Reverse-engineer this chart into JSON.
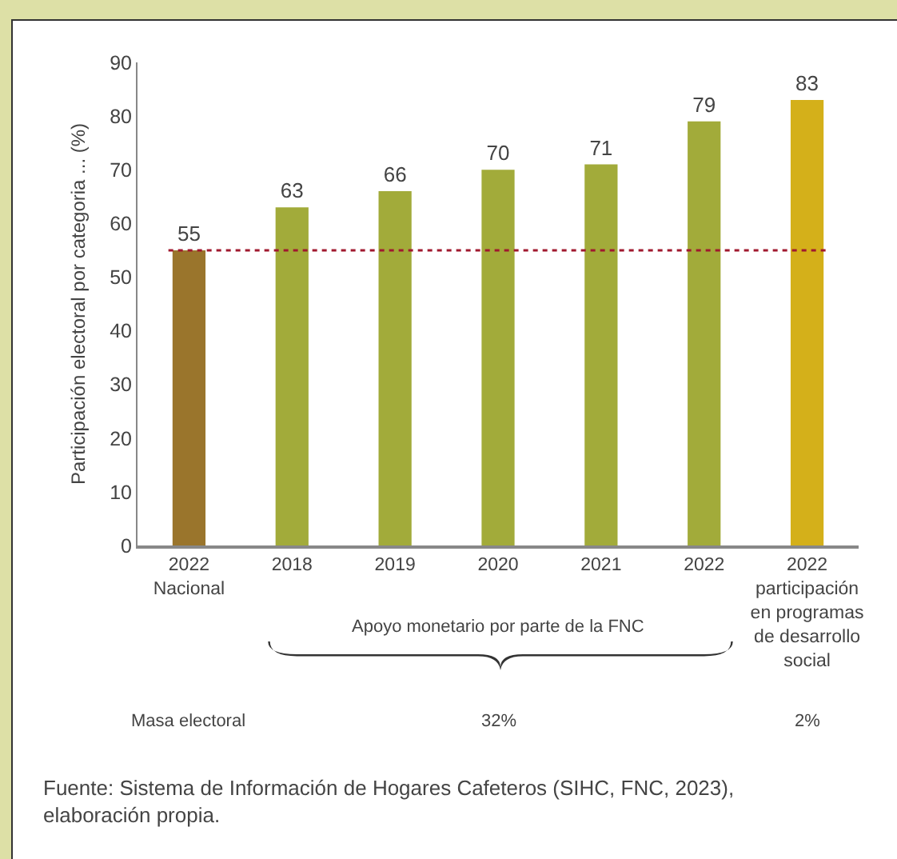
{
  "chart_data": {
    "type": "bar",
    "ylabel": "Participación electoral por categoria ... (%)",
    "categories": [
      "2022\nNacional",
      "2018",
      "2019",
      "2020",
      "2021",
      "2022",
      "2022\nparticipación\nen programas\nde desarrollo\nsocial"
    ],
    "values": [
      55,
      63,
      66,
      70,
      71,
      79,
      83
    ],
    "colors": [
      "#9a752c",
      "#a2ab3a",
      "#a2ab3a",
      "#a2ab3a",
      "#a2ab3a",
      "#a2ab3a",
      "#d4b01a"
    ],
    "ylim": [
      0,
      90
    ],
    "yticks": [
      0,
      10,
      20,
      30,
      40,
      50,
      60,
      70,
      80,
      90
    ],
    "data_labels": true,
    "ref_lines": [
      {
        "axis": "y",
        "value": 55,
        "color": "#a0182e",
        "line_style": "dotted"
      }
    ],
    "annotations": [
      "Apoyo monetario por parte de la FNC",
      "Masa electoral",
      "32%",
      "2%",
      "Fuente: Sistema de Información de Hogares Cafeteros (SIHC, FNC, 2023), elaboración propia."
    ]
  }
}
